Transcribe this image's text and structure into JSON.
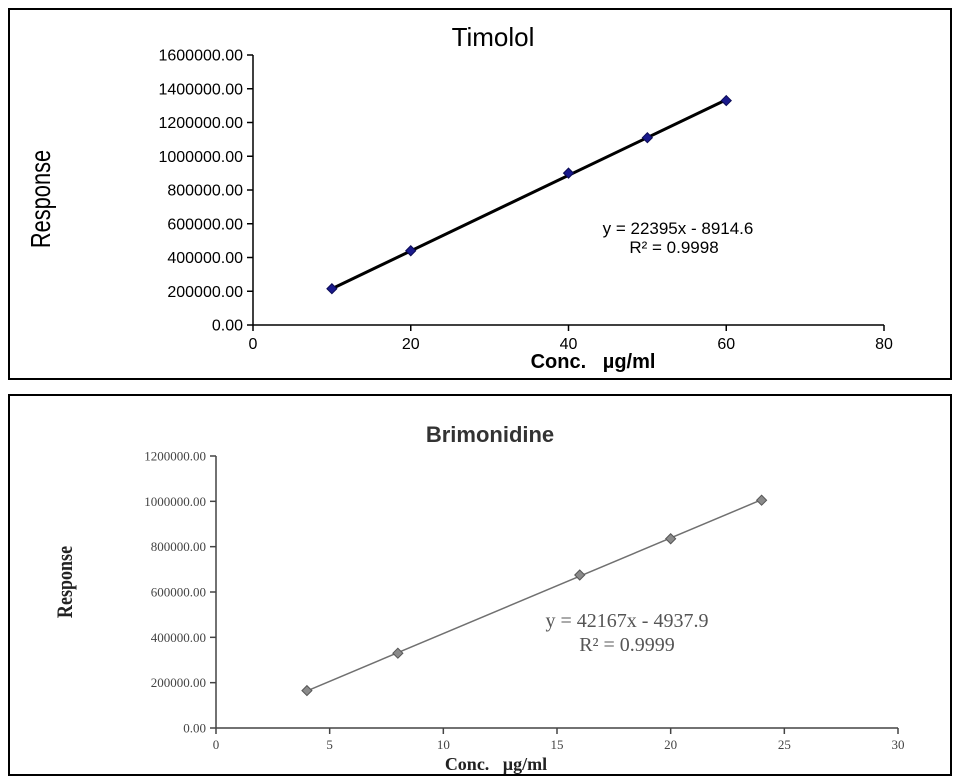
{
  "chart_data": [
    {
      "type": "scatter",
      "title": "Timolol",
      "xlabel": "Conc.   µg/ml",
      "ylabel": "Response",
      "xlim": [
        0,
        80
      ],
      "ylim": [
        0,
        1600000
      ],
      "xticks": [
        "0",
        "20",
        "40",
        "60",
        "80"
      ],
      "yticks": [
        "0.00",
        "200000.00",
        "400000.00",
        "600000.00",
        "800000.00",
        "1000000.00",
        "1200000.00",
        "1400000.00",
        "1600000.00"
      ],
      "x": [
        10,
        20,
        40,
        50,
        60
      ],
      "y": [
        215000,
        440000,
        900000,
        1110000,
        1330000
      ],
      "trendline": {
        "slope": 22395,
        "intercept": -8914.6
      },
      "equation": "y = 22395x - 8914.6",
      "r_squared": "R² = 0.9998",
      "grid": false,
      "marker_color": "#1a1a8c",
      "line_color": "#000000"
    },
    {
      "type": "scatter",
      "title": "Brimonidine",
      "xlabel": "Conc.   µg/ml",
      "ylabel": "Response",
      "xlim": [
        0,
        30
      ],
      "ylim": [
        0,
        1200000
      ],
      "xticks": [
        "0",
        "5",
        "10",
        "15",
        "20",
        "25",
        "30"
      ],
      "yticks": [
        "0.00",
        "200000.00",
        "400000.00",
        "600000.00",
        "800000.00",
        "1000000.00",
        "1200000.00"
      ],
      "x": [
        4,
        8,
        16,
        20,
        24
      ],
      "y": [
        165000,
        330000,
        675000,
        835000,
        1005000
      ],
      "trendline": {
        "slope": 42167,
        "intercept": -4937.9
      },
      "equation": "y = 42167x - 4937.9",
      "r_squared": "R² = 0.9999",
      "grid": false,
      "marker_color": "#8a8a8a",
      "line_color": "#707070"
    }
  ]
}
